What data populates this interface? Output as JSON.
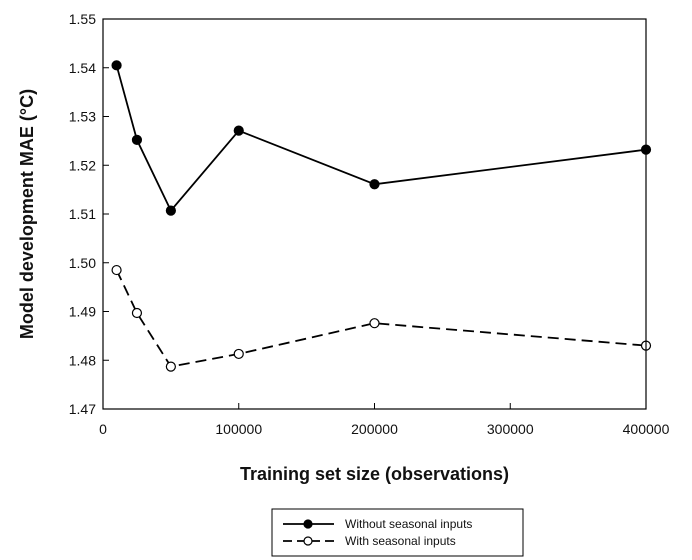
{
  "chart_data": {
    "type": "line",
    "xlabel": "Training set size (observations)",
    "ylabel": "Model development MAE (°C)",
    "xlim": [
      0,
      400000
    ],
    "ylim": [
      1.47,
      1.55
    ],
    "x_ticks": [
      "0",
      "100000",
      "200000",
      "300000",
      "400000"
    ],
    "x_tick_values": [
      0,
      100000,
      200000,
      300000,
      400000
    ],
    "y_ticks": [
      "1.47",
      "1.48",
      "1.49",
      "1.50",
      "1.51",
      "1.52",
      "1.53",
      "1.54",
      "1.55"
    ],
    "y_tick_values": [
      1.47,
      1.48,
      1.49,
      1.5,
      1.51,
      1.52,
      1.53,
      1.54,
      1.55
    ],
    "grid": false,
    "legend_position": "bottom-center",
    "series": [
      {
        "name": "Without seasonal inputs",
        "marker": "filled-circle",
        "line_style": "solid",
        "color": "#000000",
        "points": [
          {
            "x": 10000,
            "y": 1.5405
          },
          {
            "x": 25000,
            "y": 1.5252
          },
          {
            "x": 50000,
            "y": 1.5107
          },
          {
            "x": 100000,
            "y": 1.5271
          },
          {
            "x": 200000,
            "y": 1.5161
          },
          {
            "x": 400000,
            "y": 1.5232
          }
        ]
      },
      {
        "name": "With seasonal inputs",
        "marker": "open-circle",
        "line_style": "dashed",
        "color": "#000000",
        "points": [
          {
            "x": 10000,
            "y": 1.4985
          },
          {
            "x": 25000,
            "y": 1.4897
          },
          {
            "x": 50000,
            "y": 1.4787
          },
          {
            "x": 100000,
            "y": 1.4813
          },
          {
            "x": 200000,
            "y": 1.4876
          },
          {
            "x": 400000,
            "y": 1.483
          }
        ]
      }
    ]
  }
}
